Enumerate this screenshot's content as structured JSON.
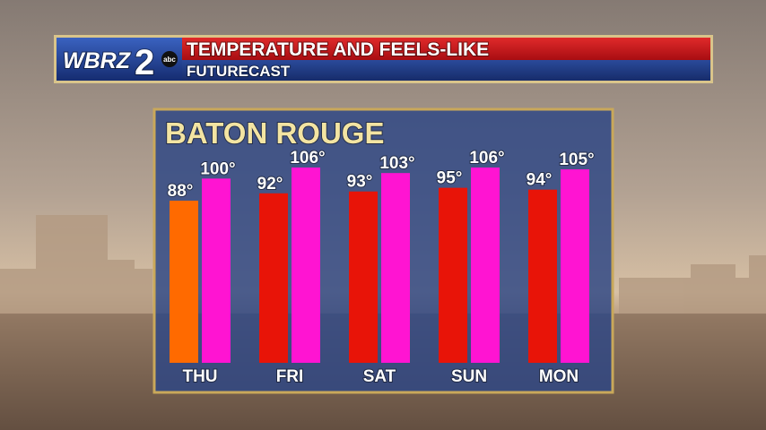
{
  "chart_data": {
    "type": "bar",
    "logo": {
      "call_sign": "WBRZ",
      "channel": "2",
      "network": "abc"
    },
    "title": "TEMPERATURE AND FEELS-LIKE",
    "subtitle": "FUTURECAST",
    "location": "BATON ROUGE",
    "categories": [
      "THU",
      "FRI",
      "SAT",
      "SUN",
      "MON"
    ],
    "series": [
      {
        "color": "#e81408",
        "colors": [
          "#ff6a00",
          "#e81408",
          "#e81408",
          "#e81408",
          "#e81408"
        ],
        "values": [
          88,
          92,
          93,
          95,
          94
        ],
        "value_labels": [
          "88°",
          "92°",
          "93°",
          "95°",
          "94°"
        ]
      },
      {
        "color": "#ff14d2",
        "values": [
          100,
          106,
          103,
          106,
          105
        ],
        "value_labels": [
          "100°",
          "106°",
          "103°",
          "106°",
          "105°"
        ]
      }
    ]
  }
}
